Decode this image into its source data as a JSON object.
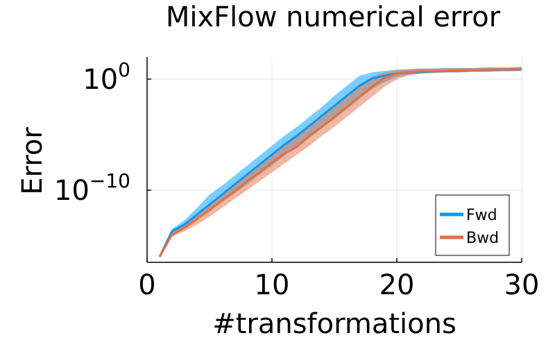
{
  "chart_data": {
    "type": "line",
    "title": "MixFlow numerical error",
    "xlabel": "#transformations",
    "ylabel": "Error",
    "xlim": [
      0,
      30
    ],
    "ylim_log10": [
      -16.5,
      2
    ],
    "yscale": "log",
    "grid": true,
    "legend_position": "bottom-right",
    "x_ticks": [
      {
        "value": 0,
        "label": "0"
      },
      {
        "value": 10,
        "label": "10"
      },
      {
        "value": 20,
        "label": "20"
      },
      {
        "value": 30,
        "label": "30"
      }
    ],
    "y_ticks": [
      {
        "value_log10": 0,
        "base": "10",
        "exponent": "0"
      },
      {
        "value_log10": -10,
        "base": "10",
        "exponent": "−10"
      }
    ],
    "x": [
      1,
      2,
      3,
      4,
      5,
      6,
      7,
      8,
      9,
      10,
      11,
      12,
      13,
      14,
      15,
      16,
      17,
      18,
      19,
      20,
      21,
      22,
      23,
      24,
      25,
      26,
      27,
      28,
      29,
      30
    ],
    "series": [
      {
        "name": "Fwd",
        "color": "#009AFA",
        "band_color": "#009AFA",
        "log10_median": [
          -16,
          -13.7,
          -13.1,
          -12.2,
          -11.3,
          -10.4,
          -9.5,
          -8.6,
          -7.7,
          -6.8,
          -5.9,
          -5.1,
          -4.2,
          -3.3,
          -2.4,
          -1.5,
          -0.6,
          0.05,
          0.3,
          0.5,
          0.6,
          0.65,
          0.7,
          0.72,
          0.75,
          0.78,
          0.8,
          0.82,
          0.85,
          0.87
        ],
        "log10_lower": [
          -16,
          -13.9,
          -13.3,
          -12.6,
          -11.9,
          -11.1,
          -10.3,
          -9.5,
          -8.6,
          -7.8,
          -6.9,
          -6.1,
          -5.3,
          -4.4,
          -3.6,
          -2.7,
          -1.8,
          -0.9,
          -0.3,
          0.2,
          0.4,
          0.5,
          0.55,
          0.6,
          0.6,
          0.65,
          0.65,
          0.7,
          0.7,
          0.75
        ],
        "log10_upper": [
          -16,
          -13.5,
          -12.7,
          -11.6,
          -10.4,
          -9.6,
          -8.7,
          -7.8,
          -6.9,
          -6.0,
          -5.1,
          -4.3,
          -3.4,
          -2.5,
          -1.5,
          -0.6,
          0.3,
          0.6,
          0.75,
          0.85,
          0.9,
          0.95,
          0.95,
          1.0,
          1.0,
          1.0,
          1.05,
          1.05,
          1.05,
          1.1
        ]
      },
      {
        "name": "Bwd",
        "color": "#E26F46",
        "band_color": "#E26F46",
        "log10_median": [
          -16,
          -14,
          -13.4,
          -12.6,
          -11.8,
          -10.9,
          -10.1,
          -9.2,
          -8.4,
          -7.5,
          -6.7,
          -6.1,
          -5.1,
          -4.3,
          -3.4,
          -2.5,
          -1.6,
          -0.7,
          0.1,
          0.5,
          0.65,
          0.7,
          0.72,
          0.75,
          0.78,
          0.8,
          0.82,
          0.85,
          0.87,
          0.9
        ],
        "log10_lower": [
          -16,
          -14.2,
          -13.7,
          -13.1,
          -12.4,
          -11.6,
          -10.8,
          -10.0,
          -9.2,
          -8.4,
          -7.6,
          -6.8,
          -6.0,
          -5.1,
          -4.3,
          -3.4,
          -2.5,
          -1.6,
          -0.7,
          0.0,
          0.35,
          0.5,
          0.55,
          0.6,
          0.62,
          0.65,
          0.68,
          0.7,
          0.72,
          0.75
        ],
        "log10_upper": [
          -16,
          -13.8,
          -13.1,
          -12.2,
          -11.3,
          -10.4,
          -9.5,
          -8.6,
          -7.7,
          -6.8,
          -5.9,
          -5.2,
          -4.3,
          -3.4,
          -2.5,
          -1.6,
          -0.7,
          0.2,
          0.6,
          0.8,
          0.9,
          0.95,
          0.95,
          1.0,
          1.0,
          1.0,
          1.05,
          1.05,
          1.05,
          1.1
        ]
      }
    ]
  }
}
